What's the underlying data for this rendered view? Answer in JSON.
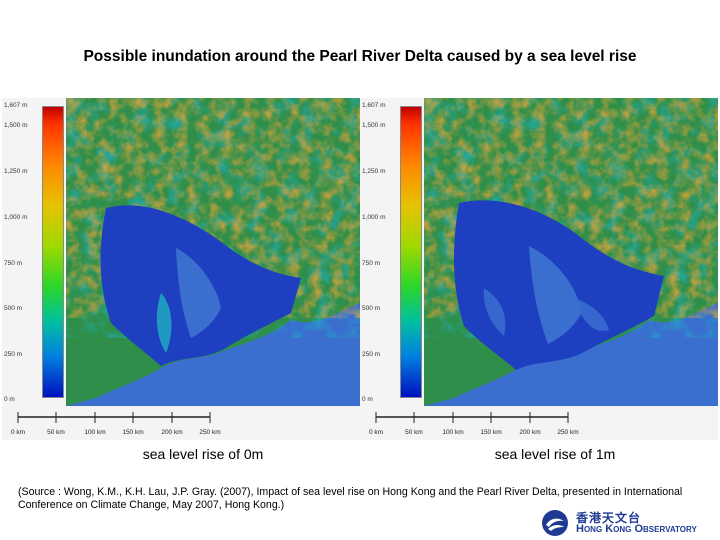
{
  "title": "Possible inundation around the Pearl River Delta caused by a sea level rise",
  "legend_ticks": [
    "1,607 m",
    "1,500 m",
    "1,250 m",
    "1,000 m",
    "750 m",
    "500 m",
    "250 m",
    "0 m"
  ],
  "scale_labels": [
    "0 km",
    "50 km",
    "100 km",
    "150 km",
    "200 km",
    "250 km"
  ],
  "panels": [
    {
      "caption": "sea level rise of 0m",
      "sea_level_rise_m": 0
    },
    {
      "caption": "sea level rise of 1m",
      "sea_level_rise_m": 1
    }
  ],
  "source": "(Source : Wong, K.M., K.H. Lau, J.P. Gray. (2007),  Impact of sea level rise on Hong Kong and the Pearl River Delta, presented in International Conference on Climate Change, May 2007,  Hong Kong.)",
  "logo": {
    "chinese": "香港天文台",
    "english": "Hong Kong Observatory"
  },
  "colors": {
    "sea": "#3a6fd0",
    "lowland": "#1e3fc0",
    "upland": "#33b24a",
    "peak": "#d7a23a"
  }
}
